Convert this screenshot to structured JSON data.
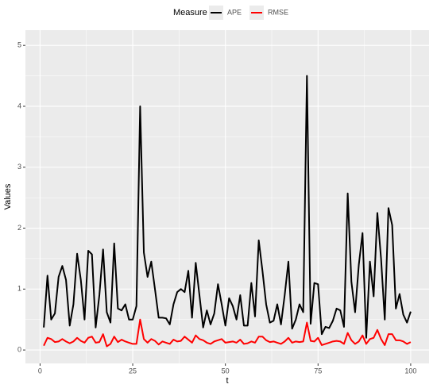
{
  "chart_data": {
    "type": "line",
    "x": [
      1,
      2,
      3,
      4,
      5,
      6,
      7,
      8,
      9,
      10,
      11,
      12,
      13,
      14,
      15,
      16,
      17,
      18,
      19,
      20,
      21,
      22,
      23,
      24,
      25,
      26,
      27,
      28,
      29,
      30,
      31,
      32,
      33,
      34,
      35,
      36,
      37,
      38,
      39,
      40,
      41,
      42,
      43,
      44,
      45,
      46,
      47,
      48,
      49,
      50,
      51,
      52,
      53,
      54,
      55,
      56,
      57,
      58,
      59,
      60,
      61,
      62,
      63,
      64,
      65,
      66,
      67,
      68,
      69,
      70,
      71,
      72,
      73,
      74,
      75,
      76,
      77,
      78,
      79,
      80,
      81,
      82,
      83,
      84,
      85,
      86,
      87,
      88,
      89,
      90,
      91,
      92,
      93,
      94,
      95,
      96,
      97,
      98,
      99,
      100
    ],
    "series": [
      {
        "name": "APE",
        "color": "#000000",
        "values": [
          0.37,
          1.22,
          0.5,
          0.6,
          1.2,
          1.38,
          1.15,
          0.4,
          0.75,
          1.58,
          1.15,
          0.5,
          1.63,
          1.57,
          0.37,
          0.9,
          1.65,
          0.62,
          0.45,
          1.75,
          0.68,
          0.65,
          0.75,
          0.5,
          0.5,
          0.72,
          4.0,
          1.6,
          1.2,
          1.45,
          1.0,
          0.53,
          0.53,
          0.52,
          0.42,
          0.75,
          0.95,
          1.0,
          0.95,
          1.3,
          0.53,
          1.43,
          0.9,
          0.37,
          0.65,
          0.42,
          0.6,
          1.08,
          0.75,
          0.4,
          0.85,
          0.72,
          0.5,
          0.9,
          0.4,
          0.4,
          1.1,
          0.55,
          1.8,
          1.3,
          0.75,
          0.45,
          0.48,
          0.75,
          0.42,
          0.9,
          1.45,
          0.35,
          0.5,
          0.75,
          0.62,
          4.5,
          0.43,
          1.1,
          1.08,
          0.26,
          0.38,
          0.36,
          0.48,
          0.68,
          0.65,
          0.38,
          2.57,
          1.12,
          0.62,
          1.4,
          1.92,
          0.2,
          1.45,
          0.88,
          2.25,
          1.5,
          0.5,
          2.33,
          2.05,
          0.68,
          0.92,
          0.58,
          0.45,
          0.63
        ]
      },
      {
        "name": "RMSE",
        "color": "#ff0000",
        "values": [
          0.07,
          0.2,
          0.18,
          0.13,
          0.14,
          0.18,
          0.14,
          0.11,
          0.14,
          0.2,
          0.15,
          0.12,
          0.2,
          0.22,
          0.12,
          0.13,
          0.26,
          0.06,
          0.1,
          0.22,
          0.13,
          0.17,
          0.14,
          0.12,
          0.1,
          0.1,
          0.5,
          0.18,
          0.12,
          0.18,
          0.15,
          0.09,
          0.14,
          0.12,
          0.1,
          0.17,
          0.14,
          0.15,
          0.22,
          0.17,
          0.12,
          0.24,
          0.18,
          0.16,
          0.12,
          0.1,
          0.14,
          0.16,
          0.18,
          0.12,
          0.13,
          0.14,
          0.12,
          0.17,
          0.1,
          0.11,
          0.14,
          0.12,
          0.22,
          0.22,
          0.16,
          0.13,
          0.14,
          0.12,
          0.1,
          0.14,
          0.2,
          0.12,
          0.14,
          0.13,
          0.14,
          0.45,
          0.15,
          0.14,
          0.2,
          0.08,
          0.1,
          0.12,
          0.14,
          0.15,
          0.14,
          0.1,
          0.28,
          0.16,
          0.1,
          0.14,
          0.24,
          0.1,
          0.18,
          0.2,
          0.33,
          0.18,
          0.08,
          0.26,
          0.26,
          0.16,
          0.16,
          0.14,
          0.1,
          0.13
        ]
      }
    ],
    "legend_title": "Measure",
    "legend_position": "top",
    "x_label": "t",
    "y_label": "Values",
    "xlim": [
      -3.95,
      104.95
    ],
    "xticks": [
      0,
      25,
      50,
      75,
      100
    ],
    "ylim": [
      -0.22,
      5.25
    ],
    "yticks": [
      0,
      1,
      2,
      3,
      4,
      5
    ],
    "grid": true
  }
}
